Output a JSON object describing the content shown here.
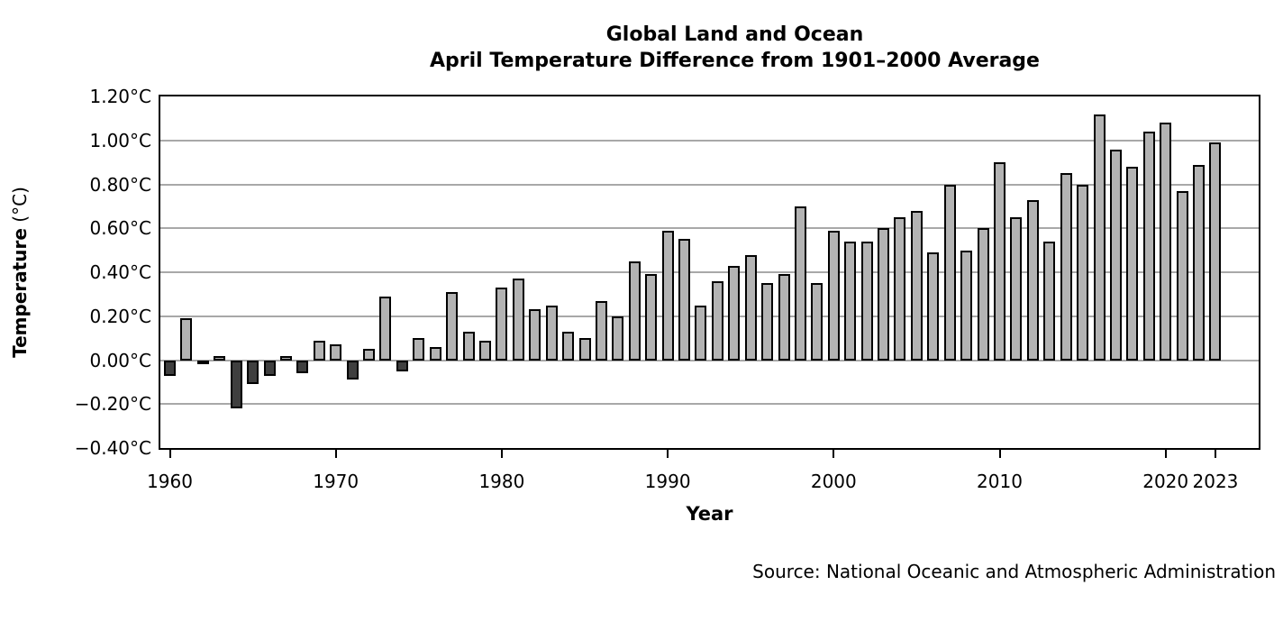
{
  "title": {
    "line1": "Global Land and Ocean",
    "line2": "April Temperature Difference from 1901–2000 Average"
  },
  "axes": {
    "y_title_main": "Temperature",
    "y_title_unit": " (°C)",
    "x_title": "Year",
    "y_ticks": [
      {
        "value": 1.2,
        "label": "1.20°C"
      },
      {
        "value": 1.0,
        "label": "1.00°C"
      },
      {
        "value": 0.8,
        "label": "0.80°C"
      },
      {
        "value": 0.6,
        "label": "0.60°C"
      },
      {
        "value": 0.4,
        "label": "0.40°C"
      },
      {
        "value": 0.2,
        "label": "0.20°C"
      },
      {
        "value": 0.0,
        "label": "0.00°C"
      },
      {
        "value": -0.2,
        "label": "−0.20°C"
      },
      {
        "value": -0.4,
        "label": "−0.40°C"
      }
    ],
    "x_ticks": [
      {
        "year": 1960,
        "label": "1960"
      },
      {
        "year": 1970,
        "label": "1970"
      },
      {
        "year": 1980,
        "label": "1980"
      },
      {
        "year": 1990,
        "label": "1990"
      },
      {
        "year": 2000,
        "label": "2000"
      },
      {
        "year": 2010,
        "label": "2010"
      },
      {
        "year": 2020,
        "label": "2020"
      },
      {
        "year": 2023,
        "label": "2023"
      }
    ]
  },
  "source": "Source: National Oceanic and Atmospheric Administration",
  "colors": {
    "positive_bar": "#b3b3b3",
    "negative_bar": "#3f3f3f",
    "bar_border": "#000000",
    "gridline": "#a8a8a8",
    "frame": "#000000"
  },
  "chart_data": {
    "type": "bar",
    "title": "Global Land and Ocean April Temperature Difference from 1901–2000 Average",
    "xlabel": "Year",
    "ylabel": "Temperature (°C)",
    "ylim": [
      -0.4,
      1.2
    ],
    "ytick_step": 0.2,
    "grid": true,
    "legend": "none",
    "x": [
      1960,
      1961,
      1962,
      1963,
      1964,
      1965,
      1966,
      1967,
      1968,
      1969,
      1970,
      1971,
      1972,
      1973,
      1974,
      1975,
      1976,
      1977,
      1978,
      1979,
      1980,
      1981,
      1982,
      1983,
      1984,
      1985,
      1986,
      1987,
      1988,
      1989,
      1990,
      1991,
      1992,
      1993,
      1994,
      1995,
      1996,
      1997,
      1998,
      1999,
      2000,
      2001,
      2002,
      2003,
      2004,
      2005,
      2006,
      2007,
      2008,
      2009,
      2010,
      2011,
      2012,
      2013,
      2014,
      2015,
      2016,
      2017,
      2018,
      2019,
      2020,
      2021,
      2022,
      2023
    ],
    "values": [
      -0.07,
      0.19,
      -0.02,
      0.02,
      -0.22,
      -0.11,
      -0.07,
      0.02,
      -0.06,
      0.09,
      0.07,
      -0.09,
      0.05,
      0.29,
      -0.05,
      0.1,
      0.06,
      0.31,
      0.13,
      0.09,
      0.33,
      0.37,
      0.23,
      0.25,
      0.13,
      0.1,
      0.27,
      0.2,
      0.45,
      0.39,
      0.59,
      0.55,
      0.25,
      0.36,
      0.43,
      0.48,
      0.35,
      0.39,
      0.7,
      0.35,
      0.59,
      0.54,
      0.54,
      0.6,
      0.65,
      0.68,
      0.49,
      0.8,
      0.5,
      0.6,
      0.9,
      0.65,
      0.73,
      0.54,
      0.85,
      0.8,
      1.12,
      0.96,
      0.88,
      1.04,
      1.08,
      0.77,
      0.89,
      0.99
    ],
    "bar_color_positive": "#b3b3b3",
    "bar_color_negative": "#3f3f3f"
  }
}
